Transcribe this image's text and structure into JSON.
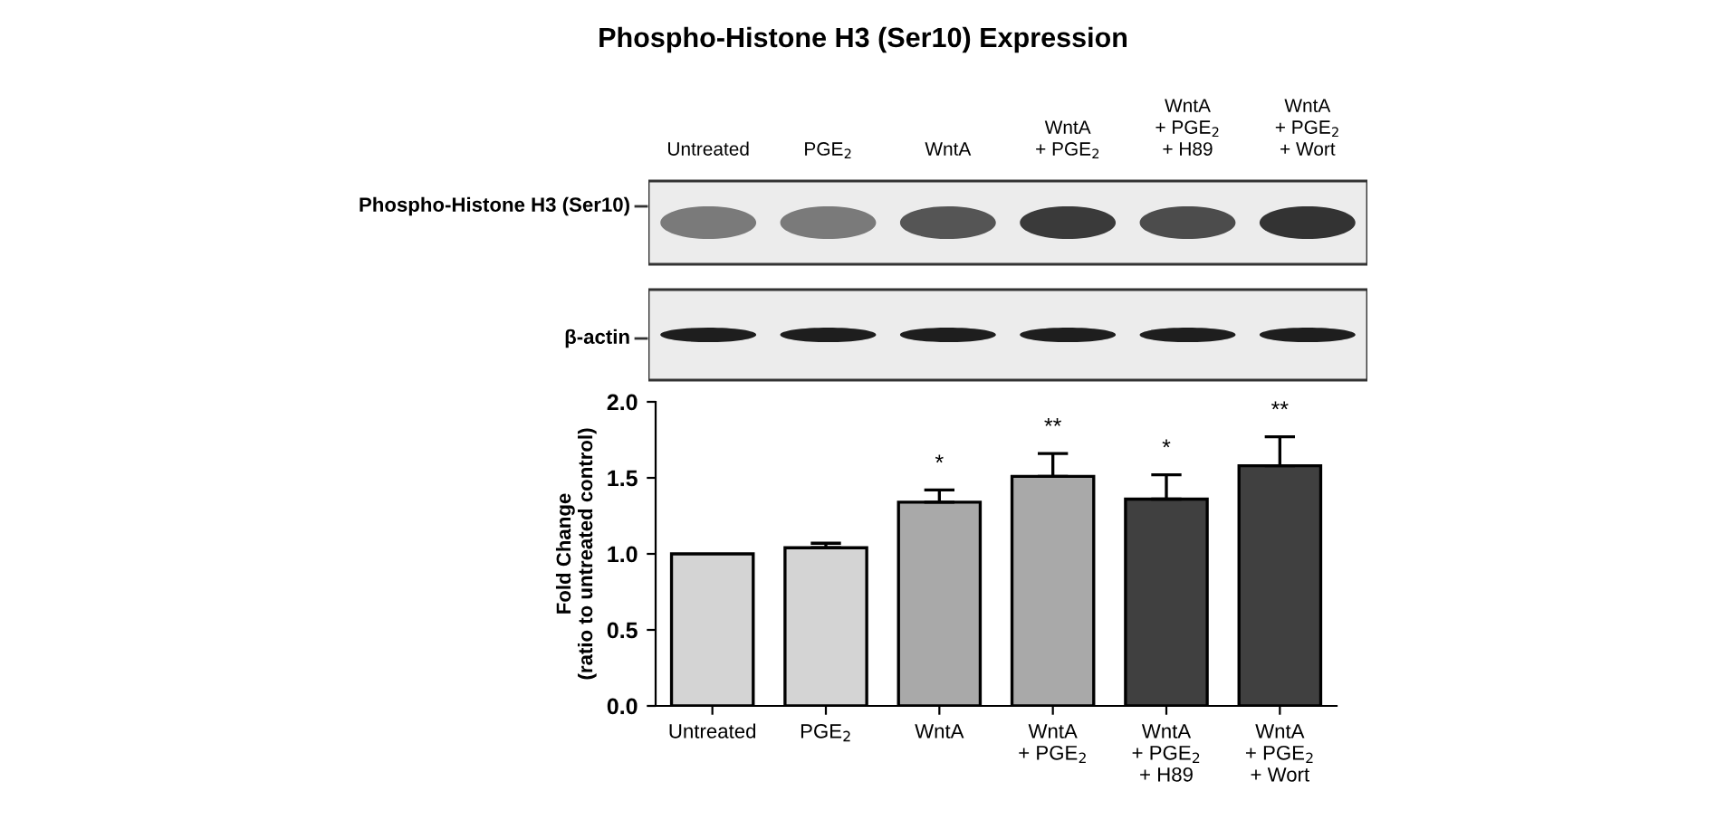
{
  "chart_data": {
    "type": "bar",
    "title": "Phospho-Histone H3 (Ser10) Expression",
    "ylabel": "Fold Change\n(ratio to untreated control)",
    "categories": [
      "Untreated",
      "PGE$_{2}$",
      "WntA",
      "WntA\n+ PGE$_{2}$",
      "WntA\n+ PGE$_{2}$\n+ H89",
      "WntA\n+ PGE$_{2}$\n+ Wort"
    ],
    "values": [
      1.0,
      1.04,
      1.34,
      1.51,
      1.36,
      1.58
    ],
    "errors": [
      null,
      [
        1.04,
        1.07
      ],
      [
        1.34,
        1.42
      ],
      [
        1.51,
        1.66
      ],
      [
        1.36,
        1.52
      ],
      [
        1.58,
        1.77
      ]
    ],
    "colors": [
      "#d4d4d4",
      "#d4d4d4",
      "#a9a9a9",
      "#a9a9a9",
      "#404040",
      "#404040"
    ],
    "ylim": [
      0,
      2.0
    ],
    "yticks": [
      {
        "value": 0,
        "label": "0.0"
      },
      {
        "value": 0.5,
        "label": "0.5"
      },
      {
        "value": 1.0,
        "label": "1.0"
      },
      {
        "value": 1.5,
        "label": "1.5"
      },
      {
        "value": 2.0,
        "label": "2.0"
      }
    ],
    "grid": false,
    "legend": false,
    "annotations": [
      "*",
      "**",
      "*",
      "**",
      "Phospho-Histone H3 (Ser10)",
      "β-actin",
      "Untreated",
      "PGE$_{2}$",
      "WntA",
      "WntA\n+ PGE$_{2}$",
      "WntA\n+ PGE$_{2}$\n+ H89",
      "WntA\n+ PGE$_{2}$\n+ Wort"
    ]
  }
}
